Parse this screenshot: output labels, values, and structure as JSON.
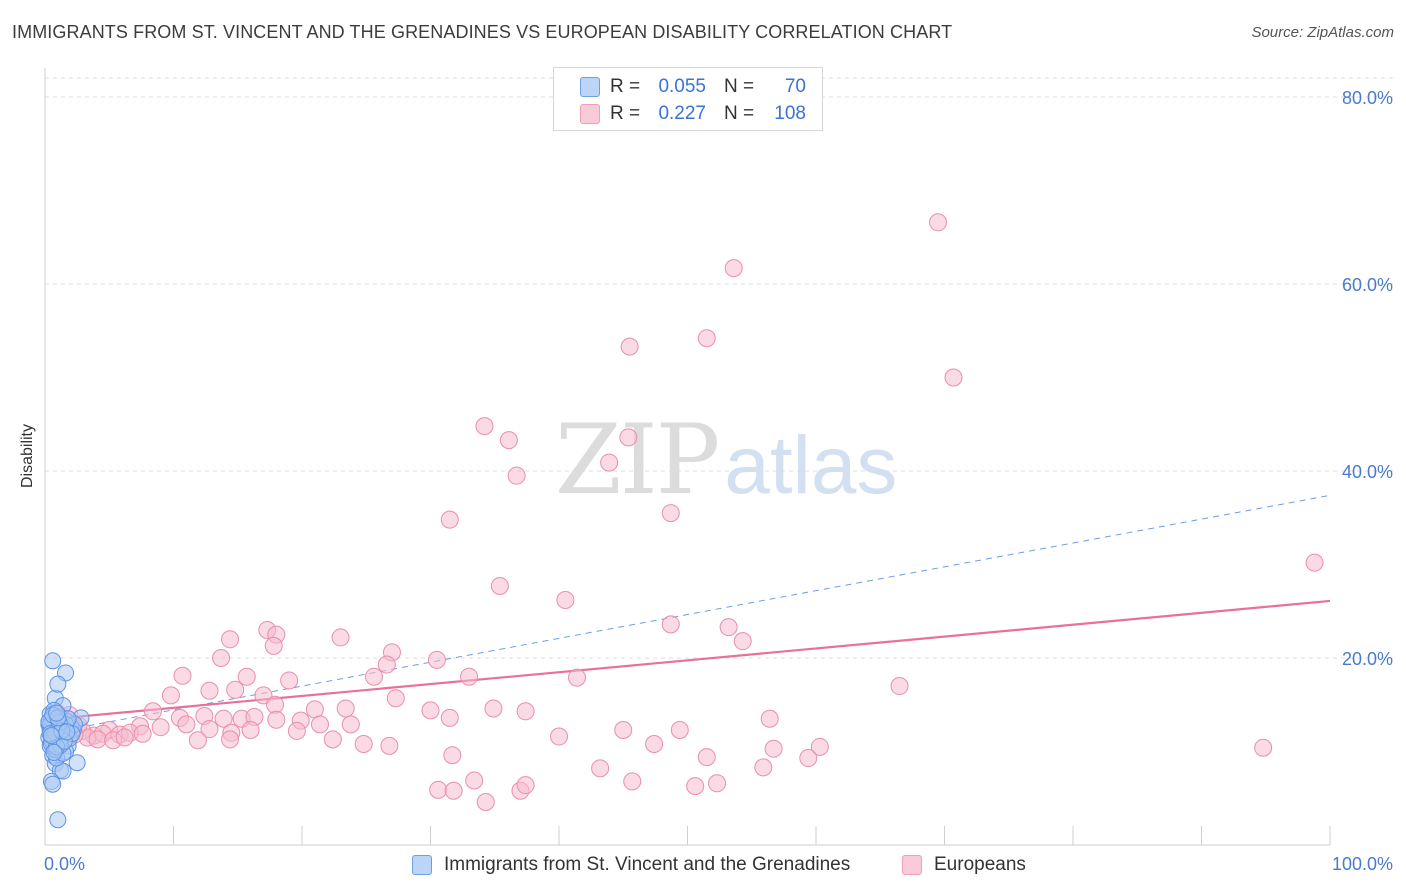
{
  "title": "IMMIGRANTS FROM ST. VINCENT AND THE GRENADINES VS EUROPEAN DISABILITY CORRELATION CHART",
  "source": "Source: ZipAtlas.com",
  "watermark": {
    "zip": "ZIP",
    "atlas": "atlas"
  },
  "legend": {
    "rows": [
      {
        "r_label": "R =",
        "r_value": "0.055",
        "n_label": "N =",
        "n_value": "70"
      },
      {
        "r_label": "R =",
        "r_value": "0.227",
        "n_label": "N =",
        "n_value": "108"
      }
    ]
  },
  "bottom_legend": {
    "blue_label": "Immigrants from St. Vincent and the Grenadines",
    "pink_label": "Europeans"
  },
  "colors": {
    "blue_fill": "#a9c8f3",
    "blue_stroke": "#5d93e6",
    "pink_fill": "#f6bccd",
    "pink_stroke": "#e98fac",
    "pink_line": "#e8709a",
    "blue_line": "#6c9ee0",
    "tick_text": "#4a7bd0",
    "grid": "#dcdcdc"
  },
  "chart_data": {
    "type": "scatter",
    "title": "IMMIGRANTS FROM ST. VINCENT AND THE GRENADINES VS EUROPEAN DISABILITY CORRELATION CHART",
    "xlabel": "",
    "ylabel": "Disability",
    "xlim": [
      0,
      100
    ],
    "ylim": [
      0,
      80
    ],
    "x_tick_labels": [
      "0.0%",
      "100.0%"
    ],
    "y_ticks": [
      20,
      40,
      60,
      80
    ],
    "y_tick_labels": [
      "20.0%",
      "40.0%",
      "60.0%",
      "80.0%"
    ],
    "grid": true,
    "legend_position": "top-center",
    "series": [
      {
        "name": "Immigrants from St. Vincent and the Grenadines",
        "R": 0.055,
        "N": 70,
        "trend": {
          "style": "dashed",
          "x": [
            0,
            100
          ],
          "y": [
            11.9,
            37.4
          ]
        },
        "points": [
          [
            0.6,
            19.7
          ],
          [
            1.6,
            18.4
          ],
          [
            0.8,
            15.7
          ],
          [
            1.4,
            14.9
          ],
          [
            1.0,
            17.2
          ],
          [
            0.4,
            12.3
          ],
          [
            0.5,
            11.3
          ],
          [
            0.7,
            10.4
          ],
          [
            0.3,
            12.9
          ],
          [
            0.9,
            13.4
          ],
          [
            1.1,
            12.0
          ],
          [
            0.6,
            9.6
          ],
          [
            0.8,
            8.7
          ],
          [
            1.2,
            8.0
          ],
          [
            1.4,
            7.9
          ],
          [
            0.5,
            6.8
          ],
          [
            0.6,
            6.5
          ],
          [
            1.0,
            2.7
          ],
          [
            2.5,
            8.8
          ],
          [
            1.8,
            10.6
          ],
          [
            2.8,
            13.6
          ],
          [
            2.2,
            12.3
          ],
          [
            0.4,
            14.0
          ],
          [
            0.7,
            13.0
          ],
          [
            1.3,
            11.7
          ],
          [
            1.6,
            10.0
          ],
          [
            0.9,
            11.8
          ],
          [
            0.5,
            12.6
          ],
          [
            1.1,
            13.8
          ],
          [
            2.0,
            12.7
          ],
          [
            0.3,
            11.5
          ],
          [
            0.6,
            12.1
          ],
          [
            0.8,
            12.9
          ],
          [
            1.0,
            10.9
          ],
          [
            1.5,
            12.4
          ],
          [
            1.7,
            13.2
          ],
          [
            0.4,
            10.6
          ],
          [
            0.9,
            9.3
          ],
          [
            1.2,
            12.6
          ],
          [
            0.7,
            14.4
          ],
          [
            0.5,
            13.5
          ],
          [
            1.9,
            11.4
          ],
          [
            2.3,
            12.9
          ],
          [
            0.6,
            11.0
          ],
          [
            1.4,
            9.8
          ],
          [
            0.8,
            10.2
          ],
          [
            1.1,
            11.2
          ],
          [
            1.3,
            13.0
          ],
          [
            0.4,
            12.8
          ],
          [
            0.9,
            12.2
          ],
          [
            1.6,
            12.9
          ],
          [
            0.7,
            11.6
          ],
          [
            1.0,
            12.5
          ],
          [
            0.5,
            10.8
          ],
          [
            1.8,
            13.5
          ],
          [
            2.1,
            11.9
          ],
          [
            0.3,
            13.2
          ],
          [
            1.2,
            10.7
          ],
          [
            0.6,
            13.9
          ],
          [
            0.9,
            10.5
          ],
          [
            1.5,
            11.1
          ],
          [
            0.8,
            12.0
          ],
          [
            1.1,
            13.1
          ],
          [
            0.4,
            11.9
          ],
          [
            1.3,
            12.2
          ],
          [
            0.7,
            9.9
          ],
          [
            1.0,
            13.6
          ],
          [
            1.7,
            12.1
          ],
          [
            0.5,
            11.7
          ],
          [
            0.9,
            14.1
          ]
        ]
      },
      {
        "name": "Europeans",
        "R": 0.227,
        "N": 108,
        "trend": {
          "style": "solid",
          "x": [
            0,
            100
          ],
          "y": [
            13.4,
            26.1
          ]
        },
        "points": [
          [
            69.5,
            66.6
          ],
          [
            53.6,
            61.7
          ],
          [
            45.5,
            53.3
          ],
          [
            51.5,
            54.2
          ],
          [
            70.7,
            50.0
          ],
          [
            34.2,
            44.8
          ],
          [
            36.1,
            43.3
          ],
          [
            45.4,
            43.6
          ],
          [
            36.7,
            39.5
          ],
          [
            43.9,
            40.9
          ],
          [
            31.5,
            34.8
          ],
          [
            48.7,
            35.5
          ],
          [
            98.8,
            30.2
          ],
          [
            35.4,
            27.7
          ],
          [
            40.5,
            26.2
          ],
          [
            48.7,
            23.6
          ],
          [
            53.2,
            23.3
          ],
          [
            54.3,
            21.8
          ],
          [
            17.3,
            23.0
          ],
          [
            14.4,
            22.0
          ],
          [
            18.0,
            22.5
          ],
          [
            23.0,
            22.2
          ],
          [
            17.8,
            21.3
          ],
          [
            27.0,
            20.6
          ],
          [
            26.6,
            19.3
          ],
          [
            30.5,
            19.8
          ],
          [
            13.7,
            20.0
          ],
          [
            15.7,
            18.0
          ],
          [
            25.6,
            18.0
          ],
          [
            33.0,
            18.0
          ],
          [
            10.7,
            18.1
          ],
          [
            19.0,
            17.6
          ],
          [
            41.4,
            17.9
          ],
          [
            66.5,
            17.0
          ],
          [
            9.8,
            16.0
          ],
          [
            12.8,
            16.5
          ],
          [
            14.8,
            16.6
          ],
          [
            17.0,
            16.0
          ],
          [
            27.3,
            15.7
          ],
          [
            17.9,
            15.0
          ],
          [
            21.0,
            14.5
          ],
          [
            23.4,
            14.6
          ],
          [
            30.0,
            14.4
          ],
          [
            34.9,
            14.6
          ],
          [
            37.4,
            14.3
          ],
          [
            8.4,
            14.3
          ],
          [
            10.5,
            13.6
          ],
          [
            12.4,
            13.8
          ],
          [
            13.9,
            13.5
          ],
          [
            15.3,
            13.5
          ],
          [
            16.3,
            13.7
          ],
          [
            18.0,
            13.4
          ],
          [
            19.9,
            13.3
          ],
          [
            21.4,
            12.9
          ],
          [
            23.8,
            12.9
          ],
          [
            31.5,
            13.6
          ],
          [
            56.4,
            13.5
          ],
          [
            7.4,
            12.7
          ],
          [
            9.0,
            12.6
          ],
          [
            11.0,
            12.9
          ],
          [
            12.8,
            12.4
          ],
          [
            14.5,
            12.0
          ],
          [
            16.0,
            12.3
          ],
          [
            19.6,
            12.2
          ],
          [
            45.0,
            12.3
          ],
          [
            49.4,
            12.3
          ],
          [
            5.0,
            12.3
          ],
          [
            5.8,
            11.8
          ],
          [
            6.6,
            12.0
          ],
          [
            7.6,
            11.9
          ],
          [
            3.8,
            11.7
          ],
          [
            4.5,
            11.9
          ],
          [
            2.9,
            12.2
          ],
          [
            3.3,
            11.5
          ],
          [
            4.1,
            11.3
          ],
          [
            5.3,
            11.2
          ],
          [
            6.2,
            11.5
          ],
          [
            11.9,
            11.2
          ],
          [
            14.4,
            11.3
          ],
          [
            22.4,
            11.3
          ],
          [
            40.0,
            11.6
          ],
          [
            2.0,
            13.2
          ],
          [
            2.6,
            12.8
          ],
          [
            1.7,
            12.4
          ],
          [
            1.4,
            13.6
          ],
          [
            2.3,
            11.8
          ],
          [
            1.9,
            13.9
          ],
          [
            0.9,
            14.2
          ],
          [
            24.8,
            10.8
          ],
          [
            26.8,
            10.6
          ],
          [
            47.4,
            10.8
          ],
          [
            56.7,
            10.3
          ],
          [
            31.7,
            9.6
          ],
          [
            94.8,
            10.4
          ],
          [
            51.5,
            9.4
          ],
          [
            60.3,
            10.5
          ],
          [
            59.4,
            9.3
          ],
          [
            43.2,
            8.2
          ],
          [
            55.9,
            8.3
          ],
          [
            33.4,
            6.9
          ],
          [
            45.7,
            6.8
          ],
          [
            30.6,
            5.9
          ],
          [
            31.8,
            5.8
          ],
          [
            37.0,
            5.8
          ],
          [
            50.6,
            6.3
          ],
          [
            37.4,
            6.4
          ],
          [
            34.3,
            4.6
          ],
          [
            52.3,
            6.6
          ]
        ]
      }
    ]
  }
}
